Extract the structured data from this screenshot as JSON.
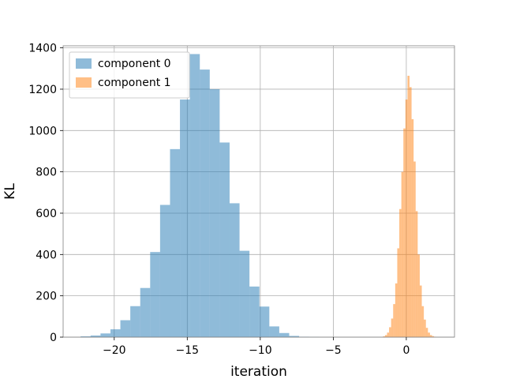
{
  "chart_data": {
    "type": "bar",
    "title": "",
    "xlabel": "iteration",
    "ylabel": "KL",
    "xlim": [
      -23.5,
      3.3
    ],
    "ylim": [
      0,
      1410
    ],
    "x_ticks": [
      -20,
      -15,
      -10,
      -5,
      0
    ],
    "x_tick_labels": [
      "−20",
      "−15",
      "−10",
      "−5",
      "0"
    ],
    "y_ticks": [
      0,
      200,
      400,
      600,
      800,
      1000,
      1200,
      1400
    ],
    "y_tick_labels": [
      "0",
      "200",
      "400",
      "600",
      "800",
      "1000",
      "1200",
      "1400"
    ],
    "grid": true,
    "legend_position": "top-left",
    "series": [
      {
        "name": "component 0",
        "color": "#1f77b4",
        "alpha": 0.5,
        "bin_edges": [
          -22.3,
          -21.62,
          -20.94,
          -20.26,
          -19.58,
          -18.9,
          -18.22,
          -17.54,
          -16.86,
          -16.18,
          -15.5,
          -14.82,
          -14.14,
          -13.46,
          -12.78,
          -12.1,
          -11.42,
          -10.74,
          -10.06,
          -9.38,
          -8.7,
          -8.02,
          -7.34,
          -6.66,
          -5.98
        ],
        "values": [
          4,
          8,
          18,
          38,
          82,
          150,
          238,
          412,
          640,
          910,
          1150,
          1370,
          1295,
          1200,
          942,
          648,
          418,
          245,
          148,
          52,
          20,
          6,
          2,
          1
        ]
      },
      {
        "name": "component 1",
        "color": "#ff7f0e",
        "alpha": 0.5,
        "bin_edges": [
          -1.6,
          -1.46,
          -1.32,
          -1.18,
          -1.04,
          -0.9,
          -0.76,
          -0.62,
          -0.48,
          -0.34,
          -0.2,
          -0.06,
          0.08,
          0.22,
          0.36,
          0.5,
          0.64,
          0.78,
          0.92,
          1.06,
          1.2,
          1.34,
          1.48,
          1.62,
          1.76,
          1.9,
          2.04
        ],
        "values": [
          4,
          10,
          22,
          48,
          90,
          160,
          260,
          430,
          620,
          800,
          1010,
          1150,
          1265,
          1210,
          1055,
          850,
          610,
          400,
          250,
          150,
          85,
          45,
          22,
          10,
          5,
          2
        ]
      }
    ]
  }
}
